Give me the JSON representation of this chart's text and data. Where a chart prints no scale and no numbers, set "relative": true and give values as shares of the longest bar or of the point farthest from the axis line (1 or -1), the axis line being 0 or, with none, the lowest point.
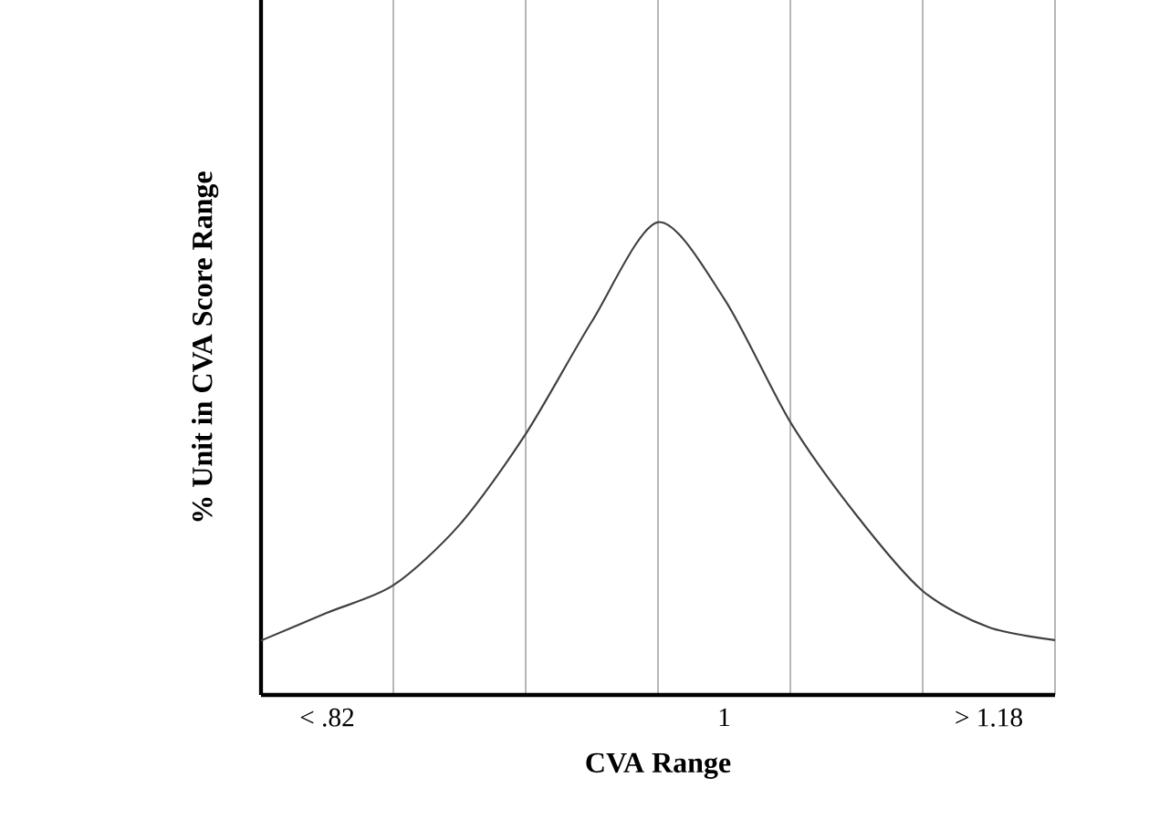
{
  "chart_data": {
    "type": "line",
    "relative": true,
    "xlabel": "CVA Range",
    "ylabel": "% Unit in CVA Score Range",
    "categories": [
      null,
      "< .82",
      null,
      null,
      null,
      null,
      null,
      "1",
      null,
      null,
      null,
      "> 1.18",
      null
    ],
    "values": [
      0.115,
      0.174,
      0.232,
      0.36,
      0.552,
      0.79,
      1.0,
      0.838,
      0.577,
      0.38,
      0.22,
      0.143,
      0.116
    ],
    "color": "#404040",
    "grid": "x",
    "marker": "none",
    "line_style": "solid"
  }
}
